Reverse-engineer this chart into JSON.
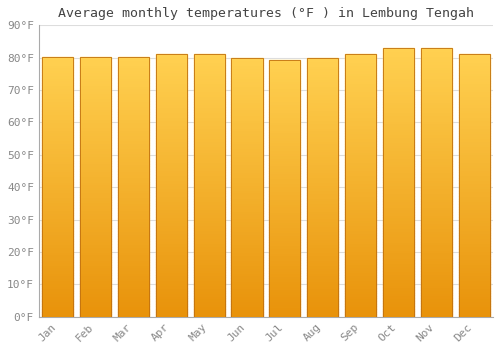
{
  "title": "Average monthly temperatures (°F ) in Lembung Tengah",
  "months": [
    "Jan",
    "Feb",
    "Mar",
    "Apr",
    "May",
    "Jun",
    "Jul",
    "Aug",
    "Sep",
    "Oct",
    "Nov",
    "Dec"
  ],
  "values": [
    80.3,
    80.3,
    80.2,
    81.1,
    81.0,
    80.0,
    79.2,
    79.9,
    81.0,
    83.0,
    83.0,
    81.0
  ],
  "bar_color_bottom": "#E8920A",
  "bar_color_top": "#FFD050",
  "background_color": "#FFFFFF",
  "grid_color": "#DDDDDD",
  "text_color": "#888888",
  "spine_color": "#AAAAAA",
  "ylim": [
    0,
    90
  ],
  "yticks": [
    0,
    10,
    20,
    30,
    40,
    50,
    60,
    70,
    80,
    90
  ],
  "title_fontsize": 9.5,
  "tick_fontsize": 8.0,
  "bar_width": 0.82
}
